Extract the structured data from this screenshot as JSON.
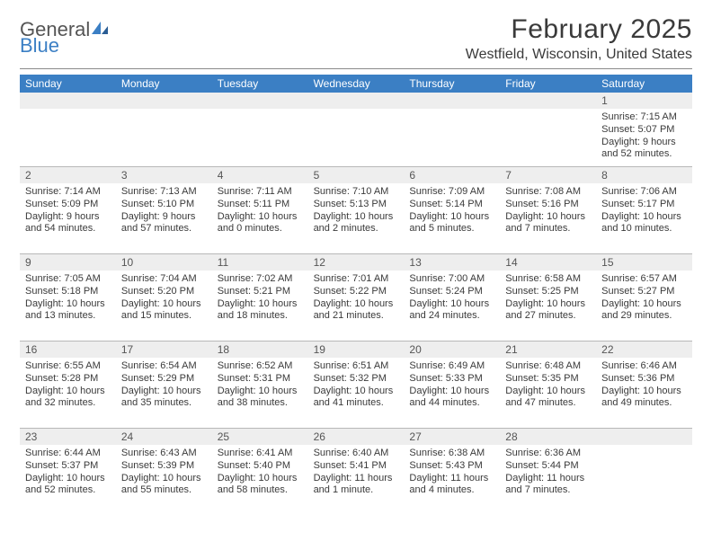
{
  "logo": {
    "general": "General",
    "blue": "Blue"
  },
  "title": "February 2025",
  "location": "Westfield, Wisconsin, United States",
  "colors": {
    "header_bg": "#3b7fc4",
    "header_text": "#ffffff",
    "numrow_bg": "#eeeeee",
    "border": "#b8b8b8",
    "text": "#3a3a3a"
  },
  "dayNames": [
    "Sunday",
    "Monday",
    "Tuesday",
    "Wednesday",
    "Thursday",
    "Friday",
    "Saturday"
  ],
  "weeks": [
    [
      null,
      null,
      null,
      null,
      null,
      null,
      {
        "n": "1",
        "sr": "Sunrise: 7:15 AM",
        "ss": "Sunset: 5:07 PM",
        "d1": "Daylight: 9 hours",
        "d2": "and 52 minutes."
      }
    ],
    [
      {
        "n": "2",
        "sr": "Sunrise: 7:14 AM",
        "ss": "Sunset: 5:09 PM",
        "d1": "Daylight: 9 hours",
        "d2": "and 54 minutes."
      },
      {
        "n": "3",
        "sr": "Sunrise: 7:13 AM",
        "ss": "Sunset: 5:10 PM",
        "d1": "Daylight: 9 hours",
        "d2": "and 57 minutes."
      },
      {
        "n": "4",
        "sr": "Sunrise: 7:11 AM",
        "ss": "Sunset: 5:11 PM",
        "d1": "Daylight: 10 hours",
        "d2": "and 0 minutes."
      },
      {
        "n": "5",
        "sr": "Sunrise: 7:10 AM",
        "ss": "Sunset: 5:13 PM",
        "d1": "Daylight: 10 hours",
        "d2": "and 2 minutes."
      },
      {
        "n": "6",
        "sr": "Sunrise: 7:09 AM",
        "ss": "Sunset: 5:14 PM",
        "d1": "Daylight: 10 hours",
        "d2": "and 5 minutes."
      },
      {
        "n": "7",
        "sr": "Sunrise: 7:08 AM",
        "ss": "Sunset: 5:16 PM",
        "d1": "Daylight: 10 hours",
        "d2": "and 7 minutes."
      },
      {
        "n": "8",
        "sr": "Sunrise: 7:06 AM",
        "ss": "Sunset: 5:17 PM",
        "d1": "Daylight: 10 hours",
        "d2": "and 10 minutes."
      }
    ],
    [
      {
        "n": "9",
        "sr": "Sunrise: 7:05 AM",
        "ss": "Sunset: 5:18 PM",
        "d1": "Daylight: 10 hours",
        "d2": "and 13 minutes."
      },
      {
        "n": "10",
        "sr": "Sunrise: 7:04 AM",
        "ss": "Sunset: 5:20 PM",
        "d1": "Daylight: 10 hours",
        "d2": "and 15 minutes."
      },
      {
        "n": "11",
        "sr": "Sunrise: 7:02 AM",
        "ss": "Sunset: 5:21 PM",
        "d1": "Daylight: 10 hours",
        "d2": "and 18 minutes."
      },
      {
        "n": "12",
        "sr": "Sunrise: 7:01 AM",
        "ss": "Sunset: 5:22 PM",
        "d1": "Daylight: 10 hours",
        "d2": "and 21 minutes."
      },
      {
        "n": "13",
        "sr": "Sunrise: 7:00 AM",
        "ss": "Sunset: 5:24 PM",
        "d1": "Daylight: 10 hours",
        "d2": "and 24 minutes."
      },
      {
        "n": "14",
        "sr": "Sunrise: 6:58 AM",
        "ss": "Sunset: 5:25 PM",
        "d1": "Daylight: 10 hours",
        "d2": "and 27 minutes."
      },
      {
        "n": "15",
        "sr": "Sunrise: 6:57 AM",
        "ss": "Sunset: 5:27 PM",
        "d1": "Daylight: 10 hours",
        "d2": "and 29 minutes."
      }
    ],
    [
      {
        "n": "16",
        "sr": "Sunrise: 6:55 AM",
        "ss": "Sunset: 5:28 PM",
        "d1": "Daylight: 10 hours",
        "d2": "and 32 minutes."
      },
      {
        "n": "17",
        "sr": "Sunrise: 6:54 AM",
        "ss": "Sunset: 5:29 PM",
        "d1": "Daylight: 10 hours",
        "d2": "and 35 minutes."
      },
      {
        "n": "18",
        "sr": "Sunrise: 6:52 AM",
        "ss": "Sunset: 5:31 PM",
        "d1": "Daylight: 10 hours",
        "d2": "and 38 minutes."
      },
      {
        "n": "19",
        "sr": "Sunrise: 6:51 AM",
        "ss": "Sunset: 5:32 PM",
        "d1": "Daylight: 10 hours",
        "d2": "and 41 minutes."
      },
      {
        "n": "20",
        "sr": "Sunrise: 6:49 AM",
        "ss": "Sunset: 5:33 PM",
        "d1": "Daylight: 10 hours",
        "d2": "and 44 minutes."
      },
      {
        "n": "21",
        "sr": "Sunrise: 6:48 AM",
        "ss": "Sunset: 5:35 PM",
        "d1": "Daylight: 10 hours",
        "d2": "and 47 minutes."
      },
      {
        "n": "22",
        "sr": "Sunrise: 6:46 AM",
        "ss": "Sunset: 5:36 PM",
        "d1": "Daylight: 10 hours",
        "d2": "and 49 minutes."
      }
    ],
    [
      {
        "n": "23",
        "sr": "Sunrise: 6:44 AM",
        "ss": "Sunset: 5:37 PM",
        "d1": "Daylight: 10 hours",
        "d2": "and 52 minutes."
      },
      {
        "n": "24",
        "sr": "Sunrise: 6:43 AM",
        "ss": "Sunset: 5:39 PM",
        "d1": "Daylight: 10 hours",
        "d2": "and 55 minutes."
      },
      {
        "n": "25",
        "sr": "Sunrise: 6:41 AM",
        "ss": "Sunset: 5:40 PM",
        "d1": "Daylight: 10 hours",
        "d2": "and 58 minutes."
      },
      {
        "n": "26",
        "sr": "Sunrise: 6:40 AM",
        "ss": "Sunset: 5:41 PM",
        "d1": "Daylight: 11 hours",
        "d2": "and 1 minute."
      },
      {
        "n": "27",
        "sr": "Sunrise: 6:38 AM",
        "ss": "Sunset: 5:43 PM",
        "d1": "Daylight: 11 hours",
        "d2": "and 4 minutes."
      },
      {
        "n": "28",
        "sr": "Sunrise: 6:36 AM",
        "ss": "Sunset: 5:44 PM",
        "d1": "Daylight: 11 hours",
        "d2": "and 7 minutes."
      },
      null
    ]
  ]
}
